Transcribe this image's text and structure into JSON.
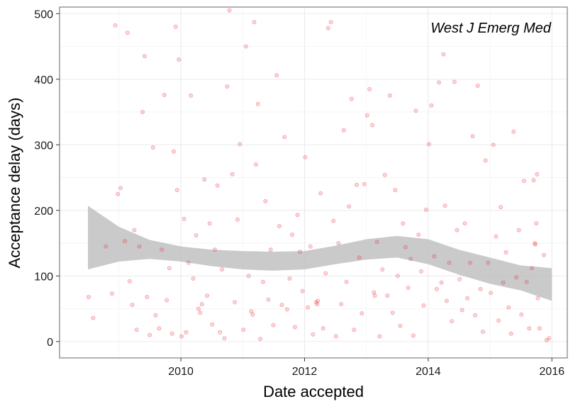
{
  "chart_data": {
    "type": "scatter",
    "title": "",
    "annotation": "West J Emerg Med",
    "xlabel": "Date accepted",
    "ylabel": "Acceptance delay (days)",
    "x_ticks": [
      "2010",
      "2012",
      "2014",
      "2016"
    ],
    "y_ticks": [
      "0",
      "100",
      "200",
      "300",
      "400",
      "500"
    ],
    "xlim": [
      "2008-01-15",
      "2016-04-01"
    ],
    "ylim": [
      -25,
      510
    ],
    "grid": true,
    "legend": "none",
    "colors": {
      "points": "#e8222a",
      "smooth_ribbon": "#bdbdbd",
      "panel_border": "#7f7f7f",
      "grid": "#ebebeb"
    },
    "point_alpha": 0.15,
    "series": [
      {
        "kind": "points",
        "points": [
          [
            "2008-07-05",
            68
          ],
          [
            "2008-08-01",
            36
          ],
          [
            "2008-10-15",
            145
          ],
          [
            "2008-11-20",
            73
          ],
          [
            "2008-12-10",
            482
          ],
          [
            "2008-12-25",
            225
          ],
          [
            "2009-01-10",
            234
          ],
          [
            "2009-02-05",
            153
          ],
          [
            "2009-02-20",
            471
          ],
          [
            "2009-03-05",
            92
          ],
          [
            "2009-03-20",
            56
          ],
          [
            "2009-04-01",
            170
          ],
          [
            "2009-04-15",
            18
          ],
          [
            "2009-05-01",
            145
          ],
          [
            "2009-05-20",
            350
          ],
          [
            "2009-06-01",
            435
          ],
          [
            "2009-06-15",
            68
          ],
          [
            "2009-07-01",
            10
          ],
          [
            "2009-07-20",
            296
          ],
          [
            "2009-08-05",
            40
          ],
          [
            "2009-08-25",
            20
          ],
          [
            "2009-09-10",
            140
          ],
          [
            "2009-09-25",
            376
          ],
          [
            "2009-10-10",
            63
          ],
          [
            "2009-10-25",
            112
          ],
          [
            "2009-11-10",
            12
          ],
          [
            "2009-11-20",
            290
          ],
          [
            "2009-12-01",
            480
          ],
          [
            "2009-12-10",
            231
          ],
          [
            "2009-12-20",
            430
          ],
          [
            "2010-01-05",
            8
          ],
          [
            "2010-01-20",
            187
          ],
          [
            "2010-02-01",
            14
          ],
          [
            "2010-02-15",
            120
          ],
          [
            "2010-03-01",
            375
          ],
          [
            "2010-03-15",
            96
          ],
          [
            "2010-04-01",
            162
          ],
          [
            "2010-04-15",
            50
          ],
          [
            "2010-04-25",
            44
          ],
          [
            "2010-05-05",
            57
          ],
          [
            "2010-05-20",
            247
          ],
          [
            "2010-06-05",
            70
          ],
          [
            "2010-06-20",
            180
          ],
          [
            "2010-07-05",
            26
          ],
          [
            "2010-07-20",
            140
          ],
          [
            "2010-08-05",
            238
          ],
          [
            "2010-08-20",
            14
          ],
          [
            "2010-09-01",
            110
          ],
          [
            "2010-09-15",
            5
          ],
          [
            "2010-10-01",
            389
          ],
          [
            "2010-10-15",
            505
          ],
          [
            "2010-11-01",
            255
          ],
          [
            "2010-11-15",
            60
          ],
          [
            "2010-12-01",
            186
          ],
          [
            "2010-12-15",
            301
          ],
          [
            "2011-01-05",
            18
          ],
          [
            "2011-01-20",
            450
          ],
          [
            "2011-02-05",
            100
          ],
          [
            "2011-02-20",
            46
          ],
          [
            "2011-03-01",
            41
          ],
          [
            "2011-03-10",
            487
          ],
          [
            "2011-03-20",
            270
          ],
          [
            "2011-04-01",
            362
          ],
          [
            "2011-04-15",
            4
          ],
          [
            "2011-05-01",
            91
          ],
          [
            "2011-05-15",
            214
          ],
          [
            "2011-06-01",
            64
          ],
          [
            "2011-06-15",
            140
          ],
          [
            "2011-07-01",
            25
          ],
          [
            "2011-07-20",
            406
          ],
          [
            "2011-08-05",
            176
          ],
          [
            "2011-08-20",
            56
          ],
          [
            "2011-09-05",
            312
          ],
          [
            "2011-09-20",
            49
          ],
          [
            "2011-10-05",
            96
          ],
          [
            "2011-10-20",
            163
          ],
          [
            "2011-11-05",
            22
          ],
          [
            "2011-11-20",
            193
          ],
          [
            "2011-12-05",
            137
          ],
          [
            "2011-12-20",
            77
          ],
          [
            "2012-01-05",
            281
          ],
          [
            "2012-01-20",
            52
          ],
          [
            "2012-02-05",
            145
          ],
          [
            "2012-02-20",
            11
          ],
          [
            "2012-03-10",
            60
          ],
          [
            "2012-03-15",
            57
          ],
          [
            "2012-03-20",
            62
          ],
          [
            "2012-04-05",
            226
          ],
          [
            "2012-04-20",
            20
          ],
          [
            "2012-05-05",
            104
          ],
          [
            "2012-05-20",
            478
          ],
          [
            "2012-06-05",
            487
          ],
          [
            "2012-06-20",
            184
          ],
          [
            "2012-07-05",
            8
          ],
          [
            "2012-07-20",
            150
          ],
          [
            "2012-08-05",
            57
          ],
          [
            "2012-08-20",
            322
          ],
          [
            "2012-09-05",
            91
          ],
          [
            "2012-09-20",
            206
          ],
          [
            "2012-10-05",
            370
          ],
          [
            "2012-10-20",
            18
          ],
          [
            "2012-11-05",
            239
          ],
          [
            "2012-11-20",
            128
          ],
          [
            "2012-12-05",
            43
          ],
          [
            "2012-12-20",
            240
          ],
          [
            "2013-01-05",
            345
          ],
          [
            "2013-01-20",
            385
          ],
          [
            "2013-02-05",
            330
          ],
          [
            "2013-02-15",
            75
          ],
          [
            "2013-02-20",
            70
          ],
          [
            "2013-03-05",
            152
          ],
          [
            "2013-03-20",
            8
          ],
          [
            "2013-04-05",
            110
          ],
          [
            "2013-04-20",
            254
          ],
          [
            "2013-05-05",
            70
          ],
          [
            "2013-05-20",
            375
          ],
          [
            "2013-06-05",
            44
          ],
          [
            "2013-06-20",
            231
          ],
          [
            "2013-07-05",
            100
          ],
          [
            "2013-07-20",
            24
          ],
          [
            "2013-08-05",
            180
          ],
          [
            "2013-08-20",
            144
          ],
          [
            "2013-09-05",
            82
          ],
          [
            "2013-09-20",
            126
          ],
          [
            "2013-10-05",
            9
          ],
          [
            "2013-10-20",
            352
          ],
          [
            "2013-11-05",
            163
          ],
          [
            "2013-11-20",
            107
          ],
          [
            "2013-12-05",
            55
          ],
          [
            "2013-12-20",
            201
          ],
          [
            "2014-01-05",
            301
          ],
          [
            "2014-01-20",
            360
          ],
          [
            "2014-02-05",
            130
          ],
          [
            "2014-02-20",
            80
          ],
          [
            "2014-03-05",
            395
          ],
          [
            "2014-03-20",
            90
          ],
          [
            "2014-04-01",
            438
          ],
          [
            "2014-04-10",
            207
          ],
          [
            "2014-04-20",
            62
          ],
          [
            "2014-05-05",
            120
          ],
          [
            "2014-05-20",
            31
          ],
          [
            "2014-06-05",
            396
          ],
          [
            "2014-06-20",
            170
          ],
          [
            "2014-07-05",
            95
          ],
          [
            "2014-07-20",
            48
          ],
          [
            "2014-08-05",
            180
          ],
          [
            "2014-08-20",
            66
          ],
          [
            "2014-09-05",
            120
          ],
          [
            "2014-09-20",
            313
          ],
          [
            "2014-10-05",
            40
          ],
          [
            "2014-10-20",
            390
          ],
          [
            "2014-11-05",
            80
          ],
          [
            "2014-11-20",
            15
          ],
          [
            "2014-12-05",
            276
          ],
          [
            "2014-12-20",
            120
          ],
          [
            "2015-01-05",
            74
          ],
          [
            "2015-01-20",
            300
          ],
          [
            "2015-02-05",
            160
          ],
          [
            "2015-02-20",
            32
          ],
          [
            "2015-03-05",
            205
          ],
          [
            "2015-03-20",
            90
          ],
          [
            "2015-04-05",
            136
          ],
          [
            "2015-04-20",
            52
          ],
          [
            "2015-05-05",
            12
          ],
          [
            "2015-05-20",
            320
          ],
          [
            "2015-06-05",
            98
          ],
          [
            "2015-06-20",
            170
          ],
          [
            "2015-07-05",
            41
          ],
          [
            "2015-07-20",
            245
          ],
          [
            "2015-08-05",
            91
          ],
          [
            "2015-08-20",
            20
          ],
          [
            "2015-09-05",
            112
          ],
          [
            "2015-09-15",
            246
          ],
          [
            "2015-09-22",
            150
          ],
          [
            "2015-09-25",
            148
          ],
          [
            "2015-10-01",
            180
          ],
          [
            "2015-10-05",
            255
          ],
          [
            "2015-10-10",
            66
          ],
          [
            "2015-10-20",
            20
          ],
          [
            "2015-11-15",
            132
          ],
          [
            "2015-12-01",
            2
          ],
          [
            "2015-12-15",
            5
          ]
        ]
      },
      {
        "kind": "smooth",
        "x": [
          "2008-07-01",
          "2009-01-01",
          "2009-07-01",
          "2010-01-01",
          "2010-07-01",
          "2011-01-01",
          "2011-07-01",
          "2012-01-01",
          "2012-07-01",
          "2013-01-01",
          "2013-07-01",
          "2014-01-01",
          "2014-07-01",
          "2015-01-01",
          "2015-07-01",
          "2016-01-01"
        ],
        "lower": [
          110,
          122,
          126,
          122,
          115,
          110,
          108,
          110,
          118,
          125,
          128,
          118,
          102,
          88,
          78,
          62
        ],
        "upper": [
          207,
          175,
          155,
          145,
          140,
          138,
          137,
          138,
          146,
          156,
          161,
          156,
          140,
          128,
          116,
          112
        ]
      }
    ]
  }
}
